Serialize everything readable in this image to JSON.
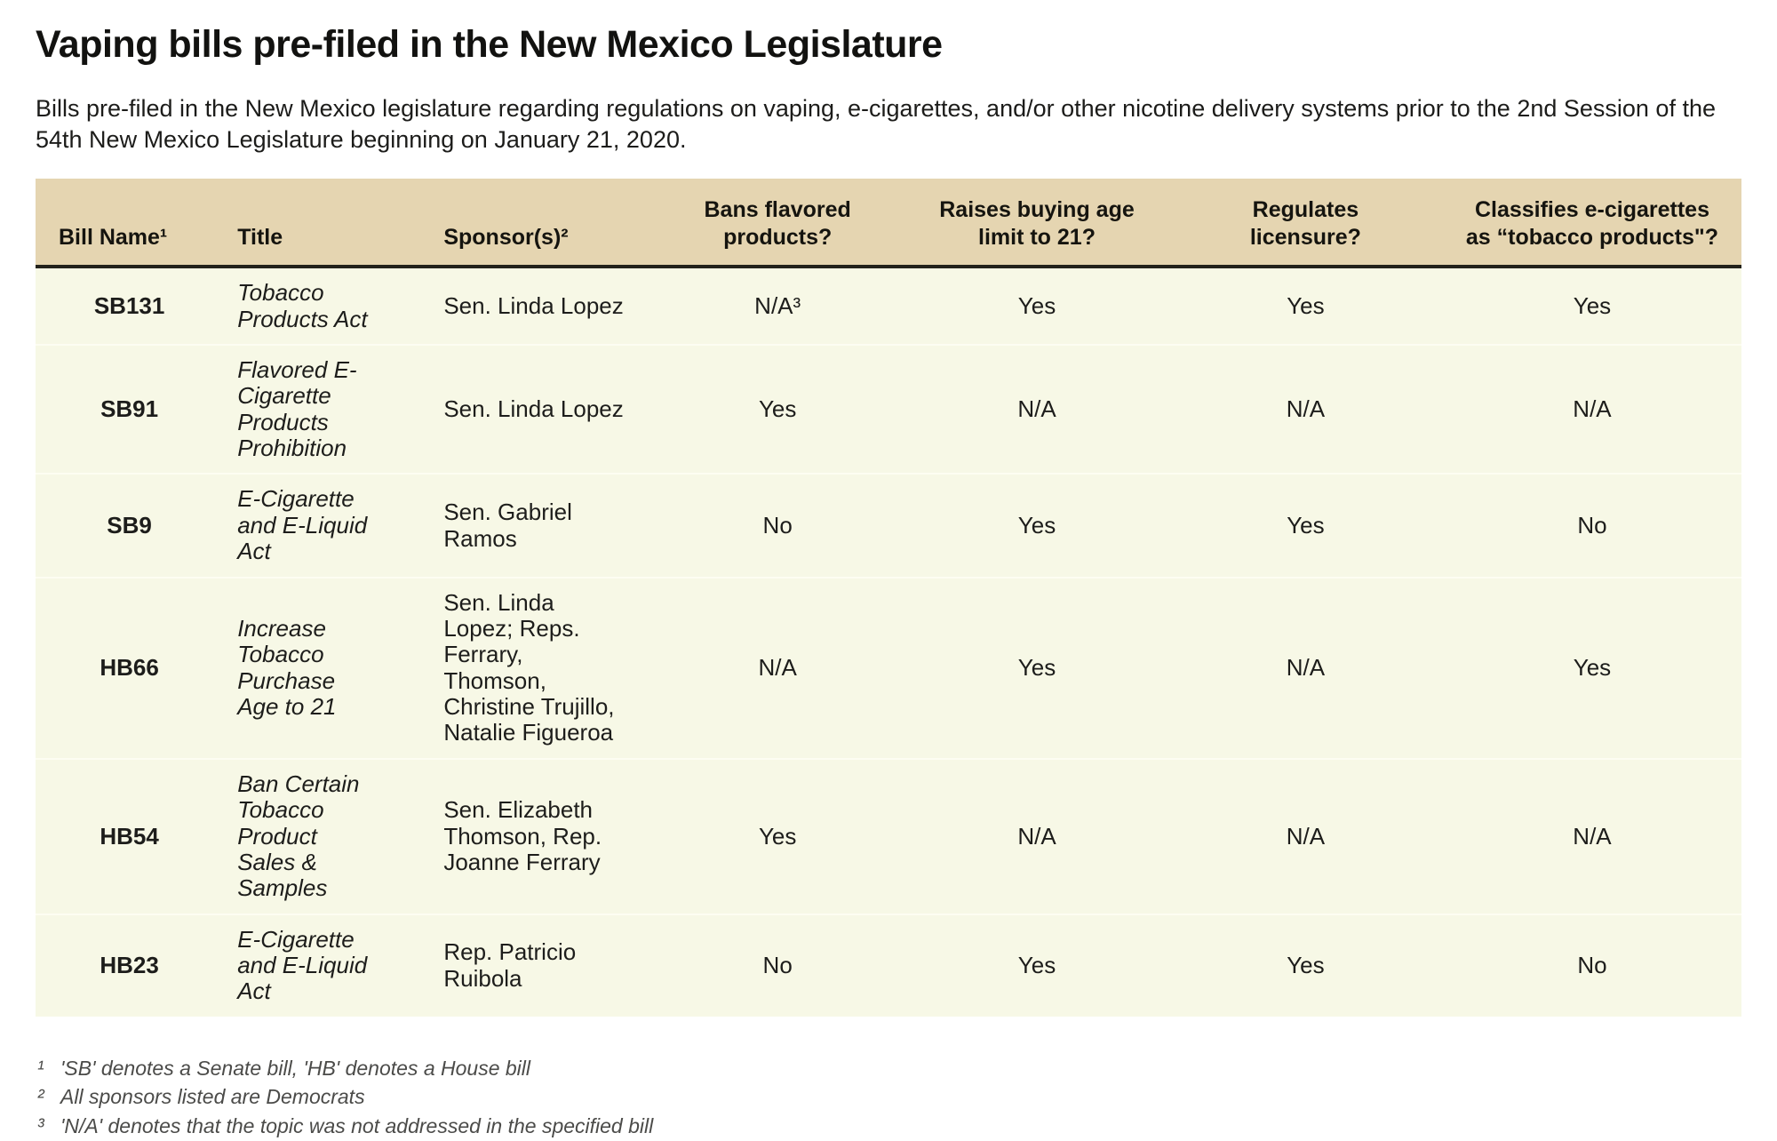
{
  "page": {
    "title": "Vaping bills pre-filed in the New Mexico Legislature",
    "subtitle": "Bills pre-filed in the New Mexico legislature regarding regulations on vaping, e-cigarettes, and/or other nicotine delivery systems prior to the 2nd Session of the 54th New Mexico Legislature beginning on January 21, 2020."
  },
  "colors": {
    "header_bg": "#e5d5b1",
    "header_border": "#23221b",
    "row_bg": "#f7f8e6",
    "row_divider": "#fdfdf2"
  },
  "chart_data": {
    "type": "table",
    "title": "Vaping bills pre-filed in the New Mexico Legislature",
    "subtitle": "Bills pre-filed in the New Mexico legislature regarding regulations on vaping, e-cigarettes, and/or other nicotine delivery systems prior to the 2nd Session of the 54th New Mexico Legislature beginning on January 21, 2020.",
    "columns": [
      {
        "label": "Bill Name¹"
      },
      {
        "label": "Title"
      },
      {
        "label": "Sponsor(s)²"
      },
      {
        "label": "Bans flavored\nproducts?"
      },
      {
        "label": "Raises buying age\nlimit to 21?"
      },
      {
        "label": "Regulates\nlicensure?"
      },
      {
        "label": "Classifies e-cigarettes\nas “tobacco products\"?"
      }
    ],
    "rows": [
      {
        "bill": "SB131",
        "title": "Tobacco Products Act",
        "sponsors": "Sen. Linda Lopez",
        "bans_flavored": "N/A³",
        "raises_age": "Yes",
        "regulates_licensure": "Yes",
        "classifies_tobacco": "Yes"
      },
      {
        "bill": "SB91",
        "title": "Flavored E-Cigarette Products Prohibition",
        "sponsors": "Sen. Linda Lopez",
        "bans_flavored": "Yes",
        "raises_age": "N/A",
        "regulates_licensure": "N/A",
        "classifies_tobacco": "N/A"
      },
      {
        "bill": "SB9",
        "title": "E-Cigarette and E-Liquid Act",
        "sponsors": "Sen. Gabriel Ramos",
        "bans_flavored": "No",
        "raises_age": "Yes",
        "regulates_licensure": "Yes",
        "classifies_tobacco": "No"
      },
      {
        "bill": "HB66",
        "title": "Increase Tobacco Purchase Age to 21",
        "sponsors": "Sen. Linda Lopez; Reps. Ferrary, Thomson, Christine Trujillo, Natalie Figueroa",
        "bans_flavored": "N/A",
        "raises_age": "Yes",
        "regulates_licensure": "N/A",
        "classifies_tobacco": "Yes"
      },
      {
        "bill": "HB54",
        "title": "Ban Certain Tobacco Product Sales & Samples",
        "sponsors": "Sen. Elizabeth Thomson, Rep. Joanne Ferrary",
        "bans_flavored": "Yes",
        "raises_age": "N/A",
        "regulates_licensure": "N/A",
        "classifies_tobacco": "N/A"
      },
      {
        "bill": "HB23",
        "title": "E-Cigarette and E-Liquid Act",
        "sponsors": "Rep. Patricio Ruibola",
        "bans_flavored": "No",
        "raises_age": "Yes",
        "regulates_licensure": "Yes",
        "classifies_tobacco": "No"
      }
    ],
    "footnotes": [
      {
        "marker": "¹",
        "text": "'SB' denotes a Senate bill, 'HB' denotes a House bill"
      },
      {
        "marker": "²",
        "text": "All sponsors listed are Democrats"
      },
      {
        "marker": "³",
        "text": "'N/A' denotes that the topic was not addressed in the specified bill"
      }
    ]
  }
}
